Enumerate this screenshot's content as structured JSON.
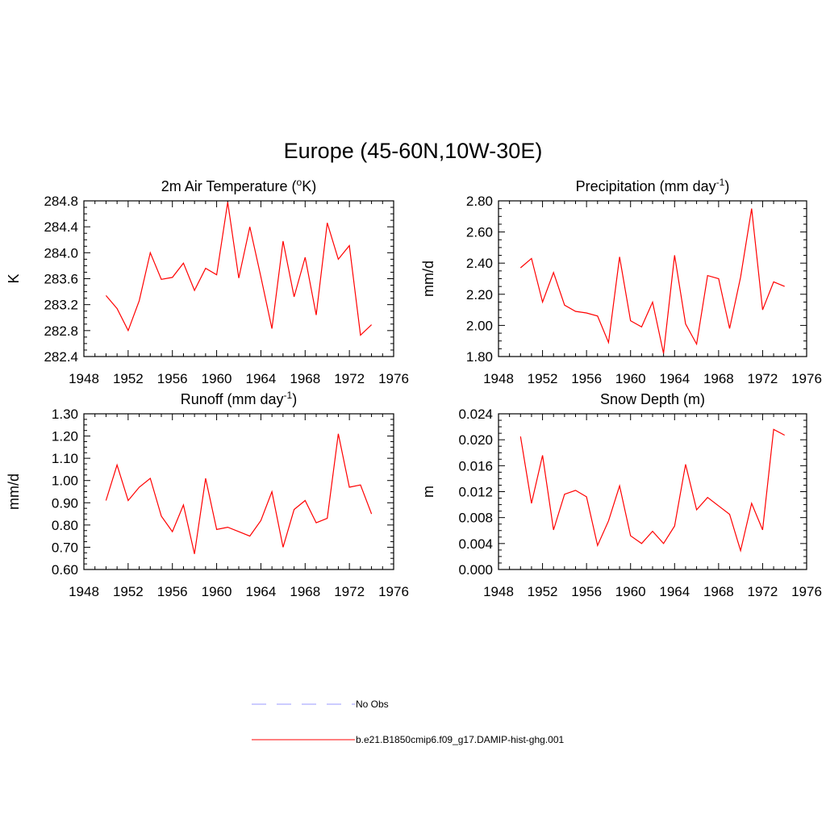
{
  "page_title": "Europe (45-60N,10W-30E)",
  "legend": [
    {
      "label": "No Obs",
      "color": "#9999ff",
      "dash": "dashed"
    },
    {
      "label": "b.e21.B1850cmip6.f09_g17.DAMIP-hist-ghg.001",
      "color": "#ff0000",
      "dash": "solid"
    }
  ],
  "chart_data": [
    {
      "type": "line",
      "title": "2m Air Temperature (oK)",
      "title_parts": {
        "pre": "2m Air Temperature (",
        "sup": "o",
        "post": "K)"
      },
      "xlabel": "",
      "ylabel": "K",
      "xlim": [
        1948,
        1976
      ],
      "ylim": [
        282.4,
        284.8
      ],
      "xticks": [
        "1948",
        "1952",
        "1956",
        "1960",
        "1964",
        "1968",
        "1972",
        "1976"
      ],
      "yticks": [
        "282.4",
        "282.8",
        "283.2",
        "283.6",
        "284.0",
        "284.4",
        "284.8"
      ],
      "grid": false,
      "series": [
        {
          "name": "b.e21.B1850cmip6.f09_g17.DAMIP-hist-ghg.001",
          "color": "#ff0000",
          "x": [
            1950,
            1951,
            1952,
            1953,
            1954,
            1955,
            1956,
            1957,
            1958,
            1959,
            1960,
            1961,
            1962,
            1963,
            1964,
            1965,
            1966,
            1967,
            1968,
            1969,
            1970,
            1971,
            1972,
            1973,
            1974
          ],
          "values": [
            283.34,
            283.14,
            282.8,
            283.26,
            284.0,
            283.59,
            283.62,
            283.84,
            283.42,
            283.76,
            283.66,
            284.78,
            283.61,
            284.4,
            283.63,
            282.83,
            284.18,
            283.32,
            283.93,
            283.04,
            284.46,
            283.9,
            284.11,
            282.73,
            282.89
          ]
        }
      ]
    },
    {
      "type": "line",
      "title": "Precipitation (mm day-1)",
      "title_parts": {
        "pre": "Precipitation (mm day",
        "sup": "-1",
        "post": ")"
      },
      "xlabel": "",
      "ylabel": "mm/d",
      "xlim": [
        1948,
        1976
      ],
      "ylim": [
        1.8,
        2.8
      ],
      "xticks": [
        "1948",
        "1952",
        "1956",
        "1960",
        "1964",
        "1968",
        "1972",
        "1976"
      ],
      "yticks": [
        "1.80",
        "2.00",
        "2.20",
        "2.40",
        "2.60",
        "2.80"
      ],
      "grid": false,
      "series": [
        {
          "name": "b.e21.B1850cmip6.f09_g17.DAMIP-hist-ghg.001",
          "color": "#ff0000",
          "x": [
            1950,
            1951,
            1952,
            1953,
            1954,
            1955,
            1956,
            1957,
            1958,
            1959,
            1960,
            1961,
            1962,
            1963,
            1964,
            1965,
            1966,
            1967,
            1968,
            1969,
            1970,
            1971,
            1972,
            1973,
            1974
          ],
          "values": [
            2.37,
            2.43,
            2.15,
            2.34,
            2.13,
            2.09,
            2.08,
            2.06,
            1.89,
            2.44,
            2.03,
            1.99,
            2.15,
            1.82,
            2.45,
            2.01,
            1.88,
            2.32,
            2.3,
            1.98,
            2.31,
            2.75,
            2.1,
            2.28,
            2.25
          ]
        }
      ]
    },
    {
      "type": "line",
      "title": "Runoff (mm day-1)",
      "title_parts": {
        "pre": "Runoff (mm day",
        "sup": "-1",
        "post": ")"
      },
      "xlabel": "",
      "ylabel": "mm/d",
      "xlim": [
        1948,
        1976
      ],
      "ylim": [
        0.6,
        1.3
      ],
      "xticks": [
        "1948",
        "1952",
        "1956",
        "1960",
        "1964",
        "1968",
        "1972",
        "1976"
      ],
      "yticks": [
        "0.60",
        "0.70",
        "0.80",
        "0.90",
        "1.00",
        "1.10",
        "1.20",
        "1.30"
      ],
      "grid": false,
      "series": [
        {
          "name": "b.e21.B1850cmip6.f09_g17.DAMIP-hist-ghg.001",
          "color": "#ff0000",
          "x": [
            1950,
            1951,
            1952,
            1953,
            1954,
            1955,
            1956,
            1957,
            1958,
            1959,
            1960,
            1961,
            1962,
            1963,
            1964,
            1965,
            1966,
            1967,
            1968,
            1969,
            1970,
            1971,
            1972,
            1973,
            1974
          ],
          "values": [
            0.91,
            1.07,
            0.91,
            0.97,
            1.01,
            0.84,
            0.77,
            0.89,
            0.67,
            1.01,
            0.78,
            0.79,
            0.77,
            0.75,
            0.82,
            0.95,
            0.7,
            0.87,
            0.91,
            0.81,
            0.83,
            1.21,
            0.97,
            0.98,
            0.85
          ]
        }
      ]
    },
    {
      "type": "line",
      "title": "Snow Depth (m)",
      "title_parts": {
        "pre": "Snow Depth (m)",
        "sup": "",
        "post": ""
      },
      "xlabel": "",
      "ylabel": "m",
      "xlim": [
        1948,
        1976
      ],
      "ylim": [
        0.0,
        0.024
      ],
      "xticks": [
        "1948",
        "1952",
        "1956",
        "1960",
        "1964",
        "1968",
        "1972",
        "1976"
      ],
      "yticks": [
        "0.000",
        "0.004",
        "0.008",
        "0.012",
        "0.016",
        "0.020",
        "0.024"
      ],
      "grid": false,
      "series": [
        {
          "name": "b.e21.B1850cmip6.f09_g17.DAMIP-hist-ghg.001",
          "color": "#ff0000",
          "x": [
            1950,
            1951,
            1952,
            1953,
            1954,
            1955,
            1956,
            1957,
            1958,
            1959,
            1960,
            1961,
            1962,
            1963,
            1964,
            1965,
            1966,
            1967,
            1968,
            1969,
            1970,
            1971,
            1972,
            1973,
            1974
          ],
          "values": [
            0.0205,
            0.0102,
            0.0176,
            0.0061,
            0.0116,
            0.0122,
            0.0112,
            0.0037,
            0.0075,
            0.0129,
            0.0052,
            0.004,
            0.0059,
            0.004,
            0.0067,
            0.0162,
            0.0092,
            0.0111,
            0.0098,
            0.0085,
            0.0029,
            0.0102,
            0.0061,
            0.0216,
            0.0207
          ]
        }
      ]
    }
  ]
}
